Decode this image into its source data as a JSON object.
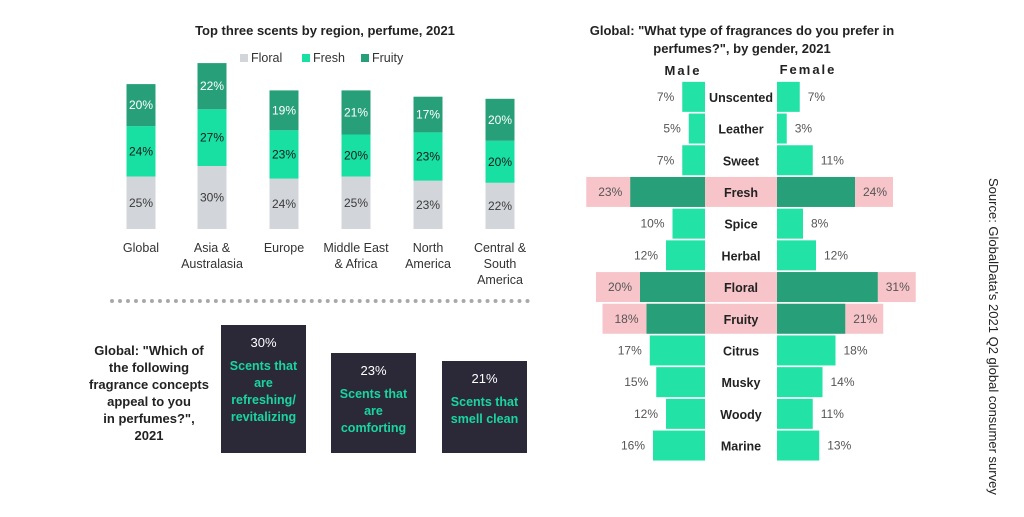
{
  "left_chart": {
    "title": "Top three scents by region, perfume, 2021",
    "legend": [
      "Floral",
      "Fresh",
      "Fruity"
    ]
  },
  "colors": {
    "floral": "#d2d5da",
    "fresh": "#18e0a3",
    "fruity": "#27a079",
    "dark_box": "#2b2838",
    "highlight": "#f7c5c9",
    "pyramid_bar": "#22e2a5"
  },
  "concepts": {
    "question": "Global: \"Which of the following fragrance concepts appeal to you in perfumes?\", 2021",
    "question_lines": [
      "Global: \"Which of",
      "the following",
      "fragrance concepts",
      "appeal to you",
      "in perfumes?\",",
      "2021"
    ],
    "items": [
      {
        "pct": "30%",
        "label_lines": [
          "Scents that",
          "are",
          "refreshing/",
          "revitalizing"
        ]
      },
      {
        "pct": "23%",
        "label_lines": [
          "Scents that",
          "are",
          "comforting"
        ]
      },
      {
        "pct": "21%",
        "label_lines": [
          "Scents that",
          "smell clean"
        ]
      }
    ]
  },
  "right_chart": {
    "title_lines": [
      "Global: \"What type of fragrances do you prefer in",
      "perfumes?\", by gender, 2021"
    ],
    "male_label": "Male",
    "female_label": "Female"
  },
  "source": "Source: GlobalData's 2021 Q2 global consumer survey",
  "chart_data": [
    {
      "type": "bar",
      "stacked": true,
      "title": "Top three scents by region, perfume, 2021",
      "categories": [
        "Global",
        "Asia & Australasia",
        "Europe",
        "Middle East & Africa",
        "North America",
        "Central & South America"
      ],
      "category_lines": [
        [
          "Global"
        ],
        [
          "Asia &",
          "Australasia"
        ],
        [
          "Europe"
        ],
        [
          "Middle East",
          "& Africa"
        ],
        [
          "North",
          "America"
        ],
        [
          "Central &",
          "South",
          "America"
        ]
      ],
      "series": [
        {
          "name": "Floral",
          "values": [
            25,
            30,
            24,
            25,
            23,
            22
          ]
        },
        {
          "name": "Fresh",
          "values": [
            24,
            27,
            23,
            20,
            23,
            20
          ]
        },
        {
          "name": "Fruity",
          "values": [
            20,
            22,
            19,
            21,
            17,
            20
          ]
        }
      ],
      "unit": "%",
      "legend_position": "top"
    },
    {
      "type": "bar",
      "orientation": "horizontal",
      "diverging": true,
      "title": "Global: \"What type of fragrances do you prefer in perfumes?\", by gender, 2021",
      "categories": [
        "Unscented",
        "Leather",
        "Sweet",
        "Fresh",
        "Spice",
        "Herbal",
        "Floral",
        "Fruity",
        "Citrus",
        "Musky",
        "Woody",
        "Marine"
      ],
      "series": [
        {
          "name": "Male",
          "values": [
            7,
            5,
            7,
            23,
            10,
            12,
            20,
            18,
            17,
            15,
            12,
            16
          ]
        },
        {
          "name": "Female",
          "values": [
            7,
            3,
            11,
            24,
            8,
            12,
            31,
            21,
            18,
            14,
            11,
            13
          ]
        }
      ],
      "highlighted": [
        "Fresh",
        "Floral",
        "Fruity"
      ],
      "unit": "%"
    }
  ]
}
